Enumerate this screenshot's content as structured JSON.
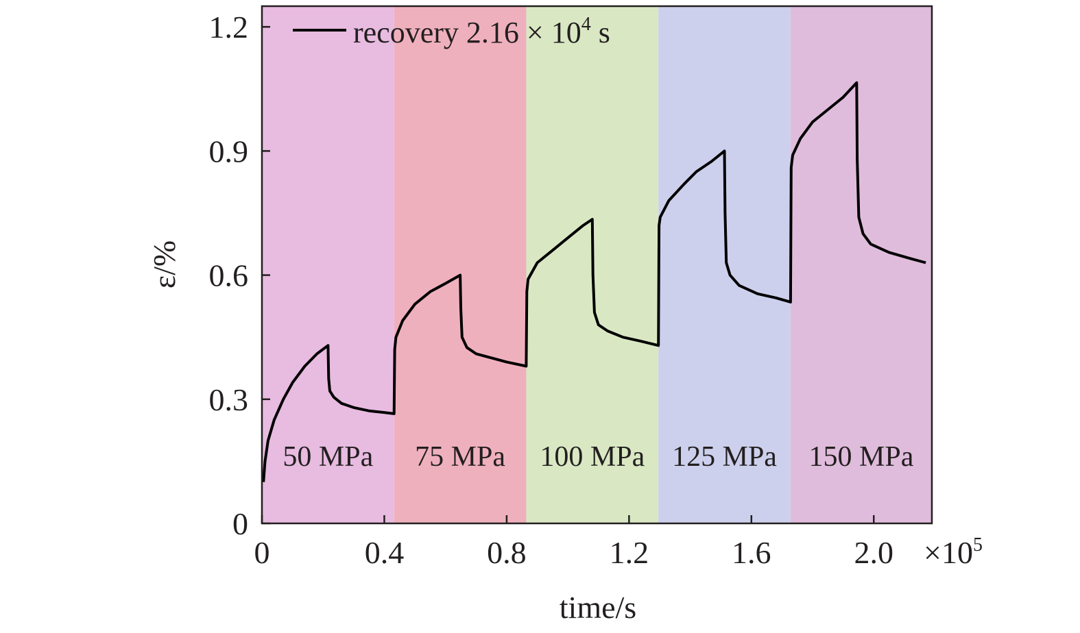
{
  "chart_data": {
    "type": "line",
    "xlabel": "time/s",
    "ylabel": "ε/%",
    "x_multiplier_label": "×10",
    "x_multiplier_exponent": "5",
    "xlim": [
      0,
      2.19
    ],
    "ylim": [
      0,
      1.25
    ],
    "x_ticks": [
      0,
      0.4,
      0.8,
      1.2,
      1.6,
      2.0
    ],
    "x_tick_labels": [
      "0",
      "0.4",
      "0.8",
      "1.2",
      "1.6",
      "2.0"
    ],
    "y_ticks": [
      0,
      0.3,
      0.6,
      0.9,
      1.2
    ],
    "y_tick_labels": [
      "0",
      "0.3",
      "0.6",
      "0.9",
      "1.2"
    ],
    "grid": false,
    "legend": {
      "placement": "top-left",
      "label_prefix": "recovery 2.16 × 10",
      "label_exponent": "4",
      "label_suffix": " s"
    },
    "stages": [
      {
        "label": "50 MPa",
        "x_start": 0.0,
        "x_end": 0.432,
        "color": "#e8bbe0"
      },
      {
        "label": "75 MPa",
        "x_start": 0.432,
        "x_end": 0.864,
        "color": "#efb0bd"
      },
      {
        "label": "100 MPa",
        "x_start": 0.864,
        "x_end": 1.296,
        "color": "#d9e8c3"
      },
      {
        "label": "125 MPa",
        "x_start": 1.296,
        "x_end": 1.728,
        "color": "#cdd0ec"
      },
      {
        "label": "150 MPa",
        "x_start": 1.728,
        "x_end": 2.19,
        "color": "#e0bcdc"
      }
    ],
    "series": [
      {
        "color": "#000000",
        "x": [
          0.005,
          0.01,
          0.02,
          0.04,
          0.07,
          0.1,
          0.14,
          0.18,
          0.216,
          0.218,
          0.222,
          0.235,
          0.26,
          0.3,
          0.35,
          0.4,
          0.432,
          0.434,
          0.438,
          0.46,
          0.5,
          0.55,
          0.6,
          0.648,
          0.65,
          0.654,
          0.67,
          0.7,
          0.75,
          0.8,
          0.864,
          0.866,
          0.87,
          0.9,
          0.95,
          1.0,
          1.05,
          1.08,
          1.082,
          1.087,
          1.1,
          1.13,
          1.18,
          1.24,
          1.296,
          1.298,
          1.302,
          1.33,
          1.38,
          1.42,
          1.47,
          1.512,
          1.514,
          1.518,
          1.53,
          1.56,
          1.62,
          1.68,
          1.728,
          1.73,
          1.735,
          1.76,
          1.8,
          1.85,
          1.9,
          1.944,
          1.946,
          1.951,
          1.965,
          1.99,
          2.05,
          2.12,
          2.17
        ],
        "y": [
          0.1,
          0.15,
          0.2,
          0.25,
          0.3,
          0.34,
          0.38,
          0.41,
          0.43,
          0.35,
          0.32,
          0.305,
          0.29,
          0.28,
          0.272,
          0.268,
          0.265,
          0.42,
          0.45,
          0.49,
          0.53,
          0.56,
          0.58,
          0.6,
          0.52,
          0.45,
          0.425,
          0.41,
          0.4,
          0.39,
          0.38,
          0.56,
          0.59,
          0.63,
          0.66,
          0.69,
          0.72,
          0.735,
          0.6,
          0.51,
          0.48,
          0.465,
          0.45,
          0.44,
          0.43,
          0.72,
          0.74,
          0.78,
          0.82,
          0.85,
          0.875,
          0.9,
          0.75,
          0.63,
          0.6,
          0.575,
          0.555,
          0.545,
          0.535,
          0.86,
          0.89,
          0.93,
          0.97,
          1.0,
          1.03,
          1.065,
          0.88,
          0.74,
          0.7,
          0.675,
          0.655,
          0.64,
          0.63
        ]
      }
    ]
  }
}
